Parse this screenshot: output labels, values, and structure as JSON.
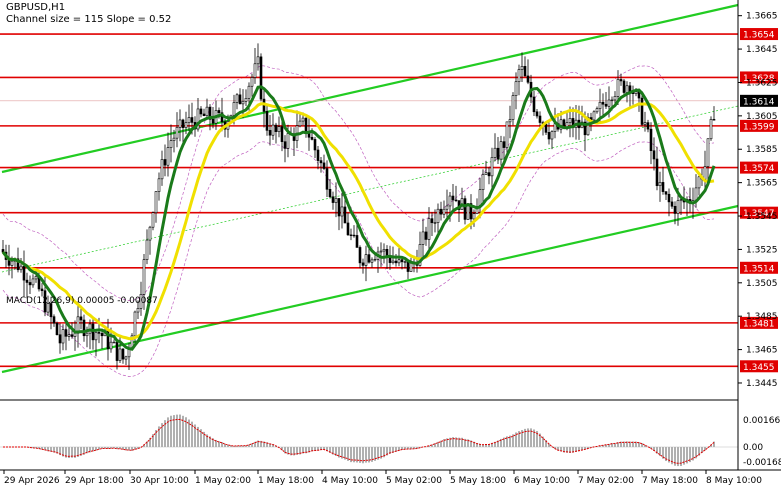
{
  "header": {
    "symbol": "GBPUSD,H1",
    "channel_info": "Channel size = 115 Slope = 0.52"
  },
  "macd": {
    "label": "MACD(12,26,9) 0.00005 -0.00087",
    "axis_labels": [
      "0.00166",
      "0.00",
      "-0.00168"
    ]
  },
  "price_axis": {
    "ticks": [
      "1.3665",
      "1.3645",
      "1.3625",
      "1.3605",
      "1.3585",
      "1.3565",
      "1.3545",
      "1.3525",
      "1.3505",
      "1.3485",
      "1.3465",
      "1.3445"
    ],
    "levels": [
      {
        "value": "1.3654",
        "color": "#e00000"
      },
      {
        "value": "1.3628",
        "color": "#e00000"
      },
      {
        "value": "1.3614",
        "color": "#000000"
      },
      {
        "value": "1.3599",
        "color": "#e00000"
      },
      {
        "value": "1.3574",
        "color": "#e00000"
      },
      {
        "value": "1.3547",
        "color": "#e00000"
      },
      {
        "value": "1.3514",
        "color": "#e00000"
      },
      {
        "value": "1.3481",
        "color": "#e00000"
      },
      {
        "value": "1.3455",
        "color": "#e00000"
      }
    ]
  },
  "time_axis": {
    "labels": [
      "29 Apr 2026",
      "29 Apr 18:00",
      "30 Apr 10:00",
      "1 May 02:00",
      "1 May 18:00",
      "4 May 10:00",
      "5 May 02:00",
      "5 May 18:00",
      "6 May 10:00",
      "7 May 02:00",
      "7 May 18:00",
      "8 May 10:00"
    ]
  },
  "chart_data": {
    "type": "candlestick",
    "title": "GBPUSD,H1",
    "ylim": [
      1.3436,
      1.3672
    ],
    "colors": {
      "candles": "#000000",
      "ma_fast": "#1a7a1a",
      "ma_slow": "#f0e000",
      "channel": "#22cc22",
      "levels": "#e00000",
      "bands": "#c060c0"
    },
    "support_resistance": [
      1.3654,
      1.3628,
      1.3599,
      1.3574,
      1.3547,
      1.3514,
      1.3481,
      1.3455
    ],
    "last_price": 1.3614
  }
}
